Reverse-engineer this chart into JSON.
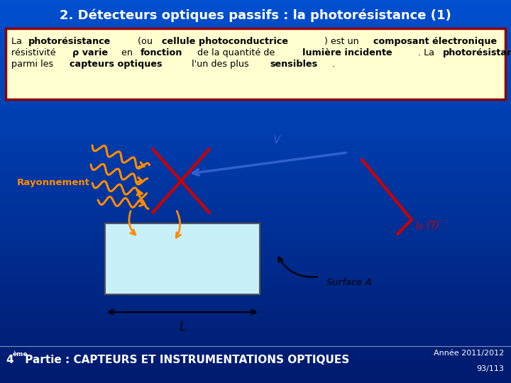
{
  "bg_gradient_top": "#0050d0",
  "bg_gradient_bottom": "#001a6e",
  "title": "2. Détecteurs optiques passifs : la photorésistance (1)",
  "title_color": "#ffffff",
  "title_fontsize": 13,
  "text_box_bg": "#ffffd0",
  "text_box_border": "#8b0000",
  "bottom_left_bold": "4",
  "bottom_left_super": "ème",
  "bottom_left_rest": " Partie : CAPTEURS ET INSTRUMENTATIONS OPTIQUES",
  "bottom_right_text1": "Année 2011/2012",
  "bottom_right_text2": "93/113",
  "orange": "#ff8c00",
  "blue_arrow": "#3060d0",
  "red": "#cc0000",
  "rect_fill": "#c8f0f8",
  "black": "#000000",
  "white": "#ffffff"
}
